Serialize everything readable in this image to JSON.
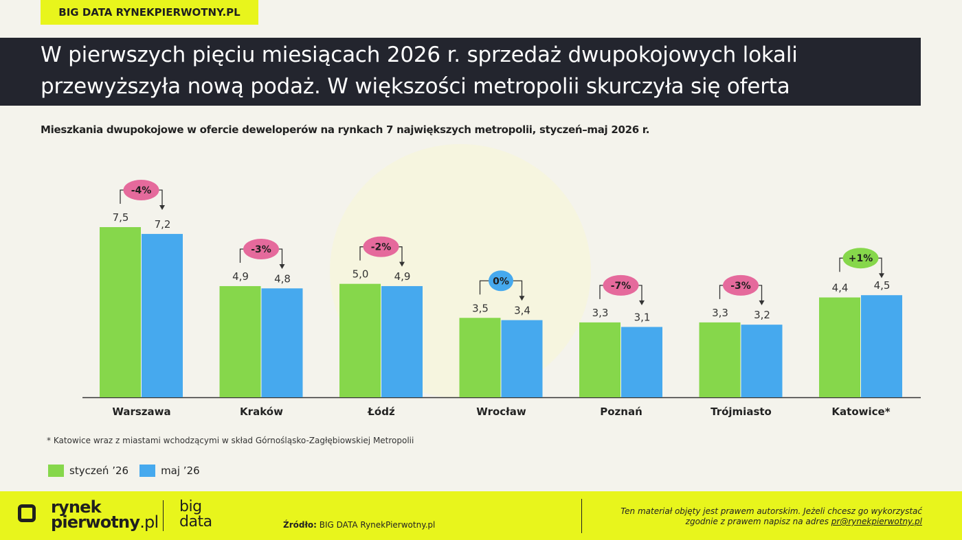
{
  "brand_tag": "BIG DATA RYNEKPIERWOTNY.PL",
  "title": {
    "line1": "W pierwszych pięciu miesiącach 2026 r. sprzedaż dwupokojowych lokali",
    "line2": "przewyższyła nową podaż. W większości metropolii skurczyła się oferta"
  },
  "subtitle": "Mieszkania dwupokojowe w ofercie deweloperów na rynkach 7 największych metropolii, styczeń–maj 2026 r.",
  "chart_data": {
    "type": "bar",
    "categories": [
      "Warszawa",
      "Kraków",
      "Łódź",
      "Wrocław",
      "Poznań",
      "Trójmiasto",
      "Katowice*"
    ],
    "series": [
      {
        "name": "styczeń '26",
        "values": [
          7.5,
          4.9,
          5.0,
          3.5,
          3.3,
          3.3,
          4.4
        ],
        "labels": [
          "7,5",
          "4,9",
          "5,0",
          "3,5",
          "3,3",
          "3,3",
          "4,4"
        ],
        "color": "#86d74b"
      },
      {
        "name": "maj '26",
        "values": [
          7.2,
          4.8,
          4.9,
          3.4,
          3.1,
          3.2,
          4.5
        ],
        "labels": [
          "7,2",
          "4,8",
          "4,9",
          "3,4",
          "3,1",
          "3,2",
          "4,5"
        ],
        "color": "#46a9ee"
      }
    ],
    "changes": [
      {
        "label": "-4%",
        "color": "#e56a9c"
      },
      {
        "label": "-3%",
        "color": "#e56a9c"
      },
      {
        "label": "-2%",
        "color": "#e56a9c"
      },
      {
        "label": "0%",
        "color": "#46a9ee"
      },
      {
        "label": "-7%",
        "color": "#e56a9c"
      },
      {
        "label": "-3%",
        "color": "#e56a9c"
      },
      {
        "label": "+1%",
        "color": "#86d74b"
      }
    ],
    "ylim": [
      0,
      7.5
    ],
    "grid": false,
    "legend_position": "bottom-left"
  },
  "footnote": "* Katowice wraz z miastami wchodzącymi w skład Górnośląsko-Zagłębiowskiej Metropolii",
  "legend": [
    "styczeń ’26",
    "maj ’26"
  ],
  "footer": {
    "logo_line1": "rynek",
    "logo_line2a": "pierwotny",
    "logo_line2b": ".pl",
    "bigdata1": "big",
    "bigdata2": "data",
    "source_label": "Źródło:",
    "source_value": " BIG DATA RynekPierwotny.pl",
    "copyright_line1": "Ten materiał objęty jest prawem autorskim. Jeżeli chcesz go wykorzystać",
    "copyright_line2": "zgodnie z prawem napisz na adres ",
    "copyright_mail": "pr@rynekpierwotny.pl"
  }
}
